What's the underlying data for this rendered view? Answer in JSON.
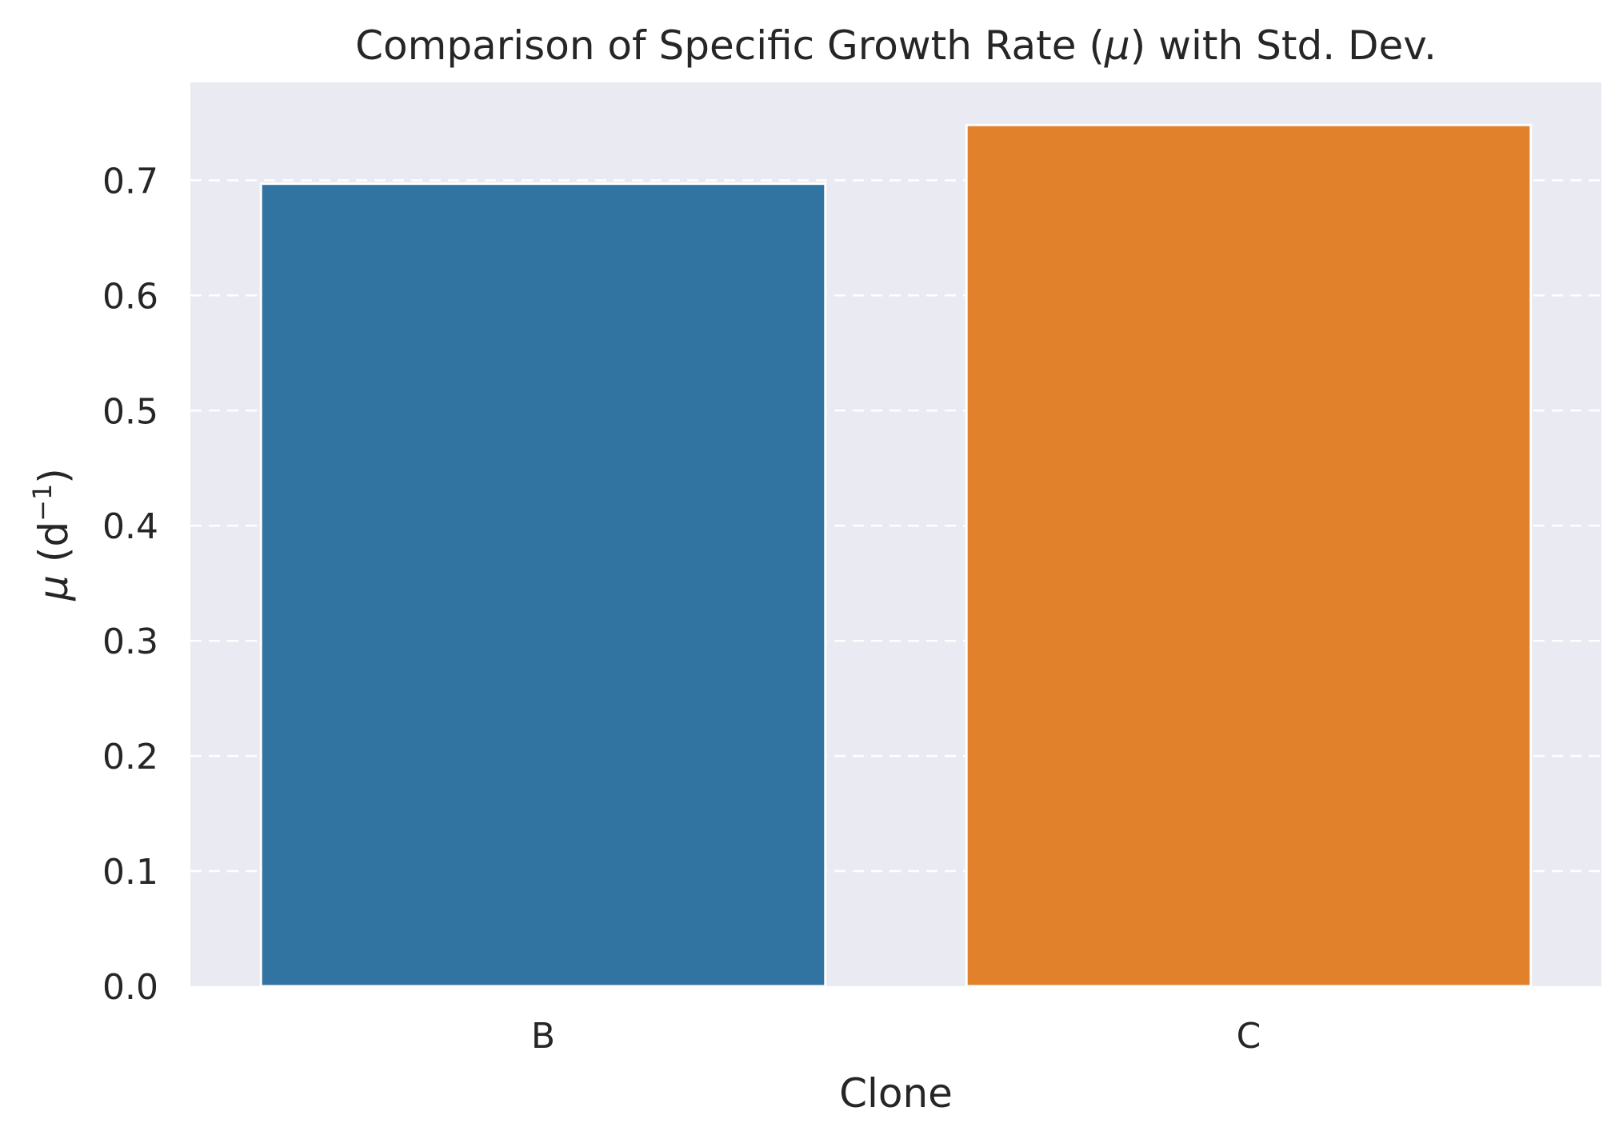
{
  "chart_data": {
    "type": "bar",
    "title_main": "Comparison of Specific Growth Rate (",
    "title_symbol": "μ",
    "title_tail": ") with Std. Dev.",
    "xlabel": "Clone",
    "ylabel_symbol": "μ",
    "ylabel_open": " (d",
    "ylabel_sup": "−1",
    "ylabel_close": ")",
    "categories": [
      "B",
      "C"
    ],
    "values": [
      0.697,
      0.748
    ],
    "ylim": [
      0,
      0.785
    ],
    "yticks": [
      "0.0",
      "0.1",
      "0.2",
      "0.3",
      "0.4",
      "0.5",
      "0.6",
      "0.7"
    ],
    "grid": "horizontal-dashed",
    "colors": {
      "background": "#EAEAF2",
      "bars": [
        "#3274A1",
        "#E1812C"
      ],
      "grid": "#FFFFFF",
      "text": "#262626"
    }
  }
}
